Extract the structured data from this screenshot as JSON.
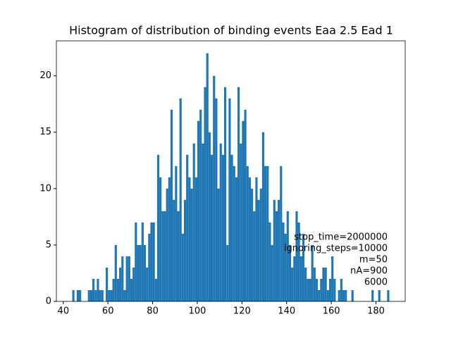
{
  "chart_data": {
    "type": "histogram",
    "title": "Histogram of distribution of binding events Eaa 2.5 Ead 1",
    "bins": [
      44,
      45,
      46,
      47,
      48,
      49,
      50,
      51,
      52,
      53,
      54,
      55,
      56,
      57,
      58,
      59,
      60,
      61,
      62,
      63,
      64,
      65,
      66,
      67,
      68,
      69,
      70,
      71,
      72,
      73,
      74,
      75,
      76,
      77,
      78,
      79,
      80,
      81,
      82,
      83,
      84,
      85,
      86,
      87,
      88,
      89,
      90,
      91,
      92,
      93,
      94,
      95,
      96,
      97,
      98,
      99,
      100,
      101,
      102,
      103,
      104,
      105,
      106,
      107,
      108,
      109,
      110,
      111,
      112,
      113,
      114,
      115,
      116,
      117,
      118,
      119,
      120,
      121,
      122,
      123,
      124,
      125,
      126,
      127,
      128,
      129,
      130,
      131,
      132,
      133,
      134,
      135,
      136,
      137,
      138,
      139,
      140,
      141,
      142,
      143,
      144,
      145,
      146,
      147,
      148,
      149,
      150,
      151,
      152,
      153,
      154,
      155,
      156,
      157,
      158,
      159,
      160,
      161,
      162,
      163,
      164,
      165,
      166,
      167,
      168,
      169,
      170,
      171,
      172,
      173,
      174,
      175,
      176,
      177,
      178,
      179,
      180,
      181,
      182,
      183,
      184,
      185,
      186
    ],
    "values": [
      1,
      0,
      1,
      1,
      0,
      0,
      0,
      1,
      1,
      2,
      1,
      2,
      1,
      1,
      0,
      3,
      1,
      1,
      2,
      5,
      2,
      3,
      4,
      1,
      4,
      4,
      2,
      3,
      7,
      5,
      5,
      7,
      5,
      3,
      6,
      7,
      7,
      2,
      13,
      11,
      8,
      8,
      10,
      11,
      17,
      9,
      12,
      8,
      18,
      6,
      9,
      13,
      11,
      10,
      14,
      11,
      16,
      17,
      14,
      19,
      22,
      15,
      13,
      20,
      18,
      10,
      14,
      13,
      19,
      5,
      18,
      13,
      12,
      11,
      19,
      14,
      16,
      17,
      12,
      11,
      10,
      8,
      11,
      9,
      10,
      15,
      12,
      12,
      7,
      5,
      9,
      8,
      9,
      12,
      7,
      6,
      8,
      5,
      3,
      4,
      8,
      7,
      4,
      6,
      3,
      2,
      2,
      5,
      3,
      2,
      1,
      2,
      3,
      3,
      1,
      2,
      4,
      2,
      0,
      1,
      2,
      1,
      1,
      0,
      0,
      1,
      0,
      0,
      0,
      0,
      0,
      0,
      0,
      0,
      1,
      0,
      0,
      1,
      0,
      0,
      0,
      1
    ],
    "color": "#1f77b4",
    "xlim": [
      36.9,
      193.1
    ],
    "ylim": [
      0,
      23.1
    ],
    "xticks": [
      40,
      60,
      80,
      100,
      120,
      140,
      160,
      180
    ],
    "yticks": [
      0,
      5,
      10,
      15,
      20
    ],
    "annotation": [
      "stop_time=2000000",
      "ignoring_steps=10000",
      "m=50",
      "nA=900",
      "6000"
    ]
  }
}
